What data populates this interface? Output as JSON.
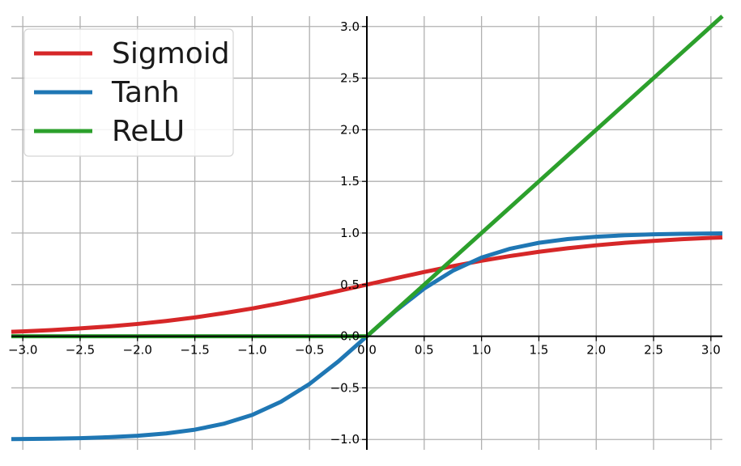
{
  "chart_data": {
    "type": "line",
    "title": "",
    "xlabel": "",
    "ylabel": "",
    "xlim": [
      -3.1,
      3.1
    ],
    "ylim": [
      -1.1,
      3.1
    ],
    "grid": true,
    "legend_position": "top-left",
    "xticks": [
      -3.0,
      -2.5,
      -2.0,
      -1.5,
      -1.0,
      -0.5,
      0.0,
      0.5,
      1.0,
      1.5,
      2.0,
      2.5,
      3.0
    ],
    "xtick_labels": [
      "−3.0",
      "−2.5",
      "−2.0",
      "−1.5",
      "−1.0",
      "−0.5",
      "0.0",
      "0.5",
      "1.0",
      "1.5",
      "2.0",
      "2.5",
      "3.0"
    ],
    "yticks": [
      -1.0,
      -0.5,
      0.0,
      0.5,
      1.0,
      1.5,
      2.0,
      2.5,
      3.0
    ],
    "ytick_labels": [
      "−1.0",
      "−0.5",
      "0.0",
      "0.5",
      "1.0",
      "1.5",
      "2.0",
      "2.5",
      "3.0"
    ],
    "x": [
      -3.1,
      -3.0,
      -2.75,
      -2.5,
      -2.25,
      -2.0,
      -1.75,
      -1.5,
      -1.25,
      -1.0,
      -0.75,
      -0.5,
      -0.25,
      0.0,
      0.25,
      0.5,
      0.75,
      1.0,
      1.25,
      1.5,
      1.75,
      2.0,
      2.25,
      2.5,
      2.75,
      3.0,
      3.1
    ],
    "series": [
      {
        "name": "Sigmoid",
        "color": "#d62728",
        "values": [
          0.043,
          0.047,
          0.06,
          0.076,
          0.095,
          0.119,
          0.148,
          0.182,
          0.223,
          0.269,
          0.321,
          0.378,
          0.438,
          0.5,
          0.562,
          0.622,
          0.679,
          0.731,
          0.777,
          0.818,
          0.852,
          0.881,
          0.905,
          0.924,
          0.94,
          0.953,
          0.957
        ]
      },
      {
        "name": "Tanh",
        "color": "#1f77b4",
        "values": [
          -0.996,
          -0.995,
          -0.992,
          -0.987,
          -0.978,
          -0.964,
          -0.941,
          -0.905,
          -0.848,
          -0.762,
          -0.635,
          -0.462,
          -0.245,
          0.0,
          0.245,
          0.462,
          0.635,
          0.762,
          0.848,
          0.905,
          0.941,
          0.964,
          0.978,
          0.987,
          0.992,
          0.995,
          0.996
        ]
      },
      {
        "name": "ReLU",
        "color": "#2ca02c",
        "values": [
          0,
          0,
          0,
          0,
          0,
          0,
          0,
          0,
          0,
          0,
          0,
          0,
          0,
          0.0,
          0.25,
          0.5,
          0.75,
          1.0,
          1.25,
          1.5,
          1.75,
          2.0,
          2.25,
          2.5,
          2.75,
          3.0,
          3.1
        ]
      }
    ]
  }
}
